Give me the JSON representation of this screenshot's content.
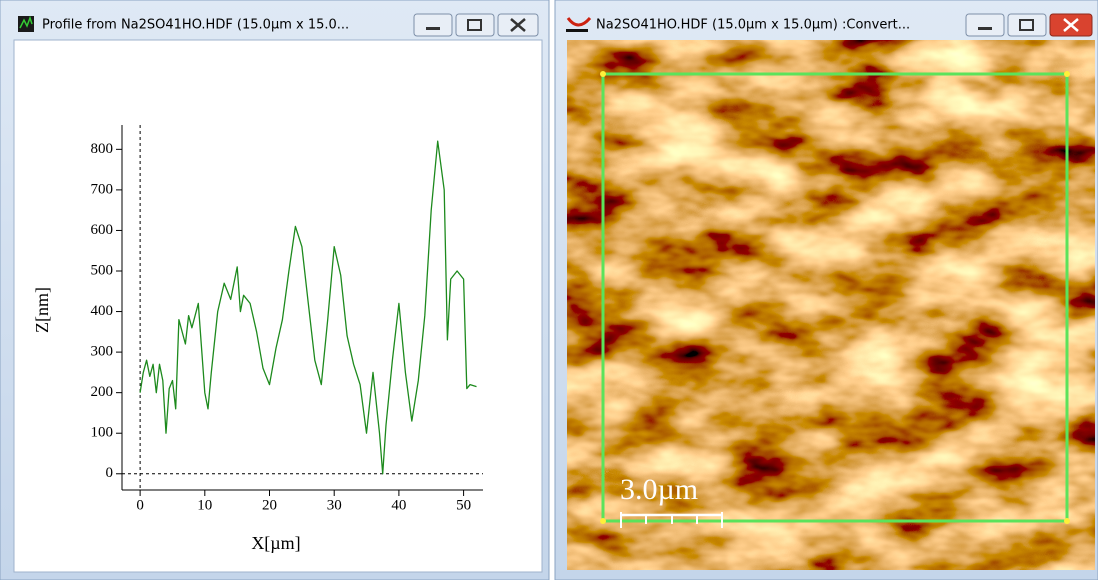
{
  "windows": [
    {
      "title": "Profile from Na2SO41HO.HDF (15.0µm x 15.0..."
    },
    {
      "title": "Na2SO41HO.HDF (15.0µm x 15.0µm) :Convert...",
      "scale_bar": "3.0µm"
    }
  ],
  "chart_data": {
    "type": "line",
    "color": "#1d8a1d",
    "x_label": "X[µm]",
    "y_label": "Z[nm]",
    "x": [
      0,
      0.5,
      1,
      1.5,
      2,
      2.5,
      3,
      3.5,
      4,
      4.5,
      5,
      5.5,
      6,
      7,
      7.5,
      8,
      9,
      10,
      10.5,
      11,
      12,
      13,
      14,
      15,
      15.5,
      16,
      17,
      18,
      19,
      20,
      21,
      22,
      23,
      24,
      25,
      26,
      27,
      28,
      29,
      30,
      31,
      32,
      33,
      34,
      35,
      36,
      37,
      37.5,
      38,
      39,
      40,
      41,
      42,
      43,
      44,
      45,
      46,
      47,
      47.5,
      48,
      49,
      50,
      50.5,
      51,
      52
    ],
    "values": [
      200,
      250,
      280,
      240,
      270,
      200,
      270,
      230,
      100,
      210,
      230,
      160,
      380,
      320,
      390,
      360,
      420,
      200,
      160,
      250,
      400,
      470,
      430,
      510,
      400,
      440,
      420,
      350,
      260,
      220,
      310,
      380,
      500,
      610,
      560,
      420,
      280,
      220,
      380,
      560,
      490,
      340,
      270,
      220,
      100,
      250,
      100,
      0,
      120,
      280,
      420,
      250,
      130,
      230,
      390,
      650,
      820,
      700,
      330,
      480,
      500,
      480,
      210,
      220,
      215
    ],
    "xlim": [
      -2.8,
      53
    ],
    "ylim": [
      -40,
      860
    ],
    "xticks": [
      0,
      10,
      20,
      30,
      40,
      50
    ],
    "yticks": [
      0,
      100,
      200,
      300,
      400,
      500,
      600,
      700,
      800
    ]
  }
}
